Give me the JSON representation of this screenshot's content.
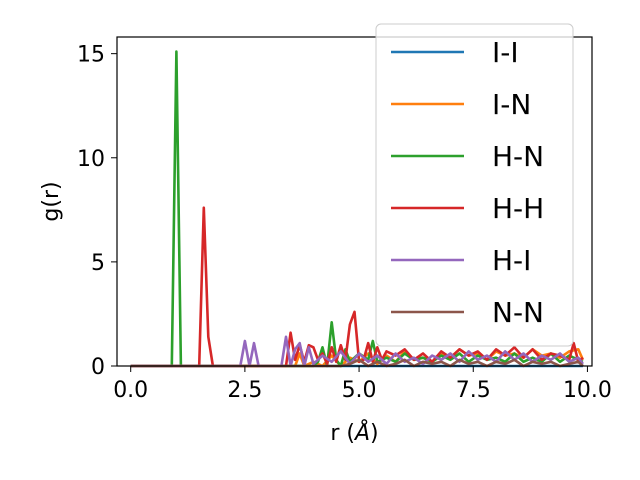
{
  "chart_data": {
    "type": "line",
    "xlabel": "r (",
    "xlabel_unit": "Å",
    "xlabel_close": ")",
    "ylabel": "g(r)",
    "xlim": [
      -0.3,
      10.1
    ],
    "ylim": [
      0,
      15.8
    ],
    "xticks": [
      0.0,
      2.5,
      5.0,
      7.5,
      10.0
    ],
    "xtick_labels": [
      "0.0",
      "2.5",
      "5.0",
      "7.5",
      "10.0"
    ],
    "yticks": [
      0,
      5,
      10,
      15
    ],
    "ytick_labels": [
      "0",
      "5",
      "10",
      "15"
    ],
    "grid": false,
    "legend_position": "upper-right",
    "series": [
      {
        "name": "I-I",
        "color": "#1f77b4",
        "x": [
          0,
          9.9
        ],
        "y": [
          0,
          0
        ]
      },
      {
        "name": "I-N",
        "color": "#ff7f0e",
        "x": [
          0,
          3.6,
          3.7,
          3.8,
          4.0,
          4.2,
          4.4,
          4.6,
          4.8,
          5.0,
          5.2,
          5.4,
          5.6,
          5.8,
          6.0,
          6.2,
          6.4,
          6.6,
          6.8,
          7.0,
          7.2,
          7.4,
          7.6,
          7.8,
          8.0,
          8.2,
          8.4,
          8.6,
          8.8,
          9.0,
          9.2,
          9.4,
          9.6,
          9.8,
          9.9
        ],
        "y": [
          0,
          0,
          0.6,
          0,
          0.2,
          0,
          0.5,
          0,
          0.4,
          0.2,
          0.6,
          0.1,
          0.5,
          0.2,
          0.7,
          0.3,
          0.4,
          0.2,
          0.6,
          0.4,
          0.8,
          0.5,
          0.6,
          0.3,
          0.7,
          0.5,
          0.6,
          0.4,
          0.8,
          0.5,
          0.6,
          0.4,
          0.7,
          0.8,
          0.3
        ]
      },
      {
        "name": "H-N",
        "color": "#2ca02c",
        "x": [
          0,
          0.9,
          1.0,
          1.1,
          1.2,
          4.0,
          4.1,
          4.2,
          4.3,
          4.4,
          4.5,
          4.6,
          4.7,
          4.8,
          5.0,
          5.2,
          5.3,
          5.4,
          5.6,
          5.8,
          6.0,
          6.2,
          6.4,
          6.6,
          6.8,
          7.0,
          7.2,
          7.4,
          7.6,
          7.8,
          8.0,
          8.2,
          8.4,
          8.6,
          8.8,
          9.0,
          9.2,
          9.4,
          9.6,
          9.8,
          9.9
        ],
        "y": [
          0,
          0,
          15.1,
          0,
          0,
          0,
          0.2,
          0.9,
          0,
          2.1,
          0.3,
          0,
          0.8,
          0.2,
          0.6,
          0.3,
          1.2,
          0.2,
          0.4,
          0.2,
          0.6,
          0.3,
          0.4,
          0.2,
          0.5,
          0.3,
          0.6,
          0.2,
          0.5,
          0.3,
          0.4,
          0.2,
          0.6,
          0.2,
          0.4,
          0.2,
          0.6,
          0.2,
          0.5,
          0.3,
          0.2
        ]
      },
      {
        "name": "H-H",
        "color": "#d62728",
        "x": [
          0,
          1.5,
          1.6,
          1.7,
          1.8,
          3.4,
          3.5,
          3.6,
          3.7,
          3.8,
          3.9,
          4.0,
          4.1,
          4.2,
          4.3,
          4.4,
          4.5,
          4.6,
          4.7,
          4.8,
          4.9,
          5.0,
          5.1,
          5.2,
          5.3,
          5.4,
          5.5,
          5.6,
          5.8,
          6.0,
          6.2,
          6.4,
          6.6,
          6.8,
          7.0,
          7.2,
          7.4,
          7.6,
          7.8,
          8.0,
          8.2,
          8.4,
          8.6,
          8.8,
          9.0,
          9.2,
          9.4,
          9.6,
          9.7,
          9.8,
          9.9
        ],
        "y": [
          0,
          0,
          7.6,
          1.4,
          0,
          0,
          1.6,
          0.3,
          1.0,
          0.2,
          1.0,
          0.9,
          0.3,
          0.6,
          0.1,
          0.9,
          0.2,
          1.0,
          0.3,
          2.0,
          2.6,
          0.2,
          0.3,
          1.1,
          0.2,
          0.9,
          0.3,
          0.7,
          0.5,
          0.8,
          0.3,
          0.6,
          0.2,
          0.7,
          0.4,
          0.8,
          0.5,
          0.7,
          0.3,
          0.8,
          0.5,
          0.9,
          0.4,
          0.8,
          0.3,
          0.6,
          0.5,
          0.3,
          1.1,
          0.2,
          0.4
        ]
      },
      {
        "name": "H-I",
        "color": "#9467bd",
        "x": [
          0,
          2.4,
          2.5,
          2.6,
          2.7,
          2.8,
          3.3,
          3.4,
          3.5,
          3.6,
          3.7,
          3.8,
          3.9,
          4.0,
          4.2,
          4.4,
          4.6,
          4.8,
          5.0,
          5.2,
          5.4,
          5.6,
          5.8,
          6.0,
          6.2,
          6.4,
          6.6,
          6.8,
          7.0,
          7.2,
          7.4,
          7.6,
          7.8,
          8.0,
          8.2,
          8.4,
          8.6,
          8.8,
          9.0,
          9.2,
          9.4,
          9.6,
          9.8,
          9.9
        ],
        "y": [
          0,
          0,
          1.2,
          0,
          1.1,
          0,
          0,
          1.4,
          0,
          0.8,
          1.1,
          0,
          0.9,
          0.1,
          0.5,
          0.2,
          0.7,
          0.1,
          0.6,
          0.2,
          0.5,
          0.1,
          0.6,
          0.2,
          0.4,
          0.1,
          0.5,
          0.3,
          0.6,
          0.2,
          0.7,
          0.3,
          0.5,
          0.2,
          0.7,
          0.3,
          0.6,
          0.2,
          0.5,
          0.3,
          0.6,
          0.2,
          0.4,
          0.1
        ]
      },
      {
        "name": "N-N",
        "color": "#8c564b",
        "x": [
          0,
          4.6,
          4.8,
          5.0,
          5.2,
          5.4,
          5.6,
          5.8,
          6.0,
          6.2,
          6.4,
          6.6,
          6.8,
          7.0,
          7.2,
          7.4,
          7.6,
          7.8,
          8.0,
          8.2,
          8.4,
          8.6,
          8.8,
          9.0,
          9.2,
          9.4,
          9.6,
          9.8,
          9.9
        ],
        "y": [
          0,
          0,
          0.1,
          0.3,
          0,
          0.2,
          0,
          0.1,
          0.3,
          0,
          0.2,
          0.1,
          0.2,
          0,
          0.3,
          0.1,
          0.2,
          0,
          0.2,
          0.1,
          0.3,
          0,
          0.2,
          0.1,
          0.2,
          0,
          0.1,
          0.2,
          0
        ]
      }
    ]
  }
}
